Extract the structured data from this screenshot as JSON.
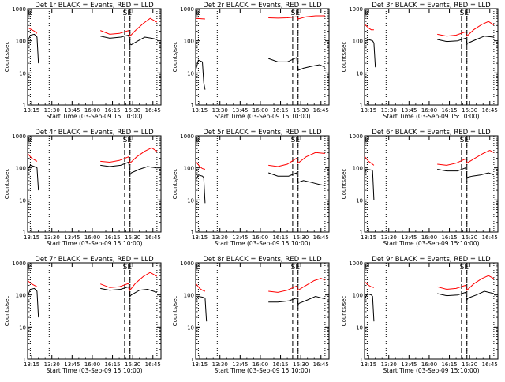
{
  "figure": {
    "xlabel": "Start Time (03-Sep-09 15:10:00)",
    "ylabel": "Counts/sec",
    "y_ticks": [
      1,
      10,
      100,
      1000
    ],
    "y_tick_labels": [
      "1",
      "10",
      "100",
      "1000"
    ],
    "x_ticks": [
      "13:15",
      "13:30",
      "13:45",
      "16:00",
      "16:15",
      "16:30",
      "16:45"
    ],
    "x_tick_minutes": [
      0,
      15,
      30,
      45,
      60,
      75,
      90
    ],
    "colors": {
      "events": "#000000",
      "lld": "#ff0000"
    }
  },
  "chart_data": [
    {
      "type": "line",
      "title": "Det 1r BLACK = Events, RED = LLD",
      "ylim": [
        1,
        1000
      ],
      "xlim": [
        -3,
        96
      ],
      "markers": {
        "E_label": "E",
        "SE_label": "SE"
      },
      "series": [
        {
          "name": "Events",
          "segments": [
            {
              "x": [
                -3,
                -1,
                2,
                4,
                5
              ],
              "y": [
                95,
                150,
                160,
                130,
                20
              ]
            },
            {
              "x": [
                51,
                58,
                66,
                72,
                73,
                74,
                79,
                84,
                89,
                93
              ],
              "y": [
                140,
                120,
                130,
                150,
                80,
                75,
                100,
                130,
                120,
                110
              ]
            }
          ]
        },
        {
          "name": "LLD",
          "segments": [
            {
              "x": [
                -3,
                0,
                2,
                4
              ],
              "y": [
                260,
                220,
                200,
                170
              ]
            },
            {
              "x": [
                51,
                58,
                65,
                72,
                73,
                77,
                83,
                88,
                93
              ],
              "y": [
                210,
                160,
                170,
                210,
                140,
                210,
                350,
                500,
                380
              ]
            }
          ]
        }
      ],
      "vlines_dotted": [
        -1,
        13,
        73,
        93
      ],
      "vlines_dashed": [
        69,
        73
      ]
    },
    {
      "type": "line",
      "title": "Det 2r BLACK = Events, RED = LLD",
      "ylim": [
        1,
        1000
      ],
      "xlim": [
        -3,
        96
      ],
      "markers": {
        "E_label": "E",
        "SE_label": "SE"
      },
      "series": [
        {
          "name": "Events",
          "segments": [
            {
              "x": [
                -3,
                -1,
                2,
                3,
                4
              ],
              "y": [
                12,
                25,
                22,
                5,
                3
              ]
            },
            {
              "x": [
                51,
                58,
                65,
                72,
                73,
                77,
                83,
                89,
                93
              ],
              "y": [
                28,
                22,
                22,
                30,
                12,
                14,
                16,
                18,
                15
              ]
            }
          ]
        },
        {
          "name": "LLD",
          "segments": [
            {
              "x": [
                -3,
                4
              ],
              "y": [
                500,
                480
              ]
            },
            {
              "x": [
                51,
                58,
                65,
                72,
                73,
                79,
                86,
                93
              ],
              "y": [
                520,
                510,
                520,
                560,
                480,
                560,
                600,
                600
              ]
            }
          ]
        }
      ],
      "vlines_dotted": [
        -1,
        13,
        73,
        93
      ],
      "vlines_dashed": [
        69,
        73
      ]
    },
    {
      "type": "line",
      "title": "Det 3r BLACK = Events, RED = LLD",
      "ylim": [
        1,
        1000
      ],
      "xlim": [
        -3,
        96
      ],
      "markers": {
        "E_label": "E",
        "SE_label": "SE"
      },
      "series": [
        {
          "name": "Events",
          "segments": [
            {
              "x": [
                -3,
                0,
                3,
                4,
                5
              ],
              "y": [
                120,
                110,
                100,
                85,
                15
              ]
            },
            {
              "x": [
                51,
                58,
                66,
                72,
                73,
                74,
                80,
                86,
                93
              ],
              "y": [
                110,
                95,
                100,
                120,
                80,
                85,
                110,
                140,
                130
              ]
            }
          ]
        },
        {
          "name": "LLD",
          "segments": [
            {
              "x": [
                -3,
                0,
                2,
                4
              ],
              "y": [
                330,
                250,
                220,
                220
              ]
            },
            {
              "x": [
                51,
                58,
                65,
                72,
                73,
                78,
                84,
                89,
                93
              ],
              "y": [
                160,
                140,
                150,
                190,
                140,
                220,
                320,
                400,
                310
              ]
            }
          ]
        }
      ],
      "vlines_dotted": [
        -1,
        13,
        73,
        93
      ],
      "vlines_dashed": [
        69,
        73
      ]
    },
    {
      "type": "line",
      "title": "Det 4r BLACK = Events, RED = LLD",
      "ylim": [
        1,
        1000
      ],
      "xlim": [
        -3,
        96
      ],
      "markers": {
        "E_label": "E",
        "SE_label": "SE"
      },
      "series": [
        {
          "name": "Events",
          "segments": [
            {
              "x": [
                -3,
                -1,
                2,
                4,
                5
              ],
              "y": [
                90,
                120,
                110,
                100,
                20
              ]
            },
            {
              "x": [
                51,
                58,
                66,
                72,
                73,
                74,
                80,
                86,
                93
              ],
              "y": [
                120,
                110,
                120,
                150,
                60,
                70,
                90,
                110,
                100
              ]
            }
          ]
        },
        {
          "name": "LLD",
          "segments": [
            {
              "x": [
                -3,
                0,
                2,
                4
              ],
              "y": [
                280,
                200,
                180,
                160
              ]
            },
            {
              "x": [
                51,
                58,
                65,
                72,
                73,
                78,
                84,
                89,
                93
              ],
              "y": [
                160,
                150,
                170,
                220,
                140,
                220,
                330,
                420,
                330
              ]
            }
          ]
        }
      ],
      "vlines_dotted": [
        -1,
        13,
        73,
        93
      ],
      "vlines_dashed": [
        69,
        73
      ]
    },
    {
      "type": "line",
      "title": "Det 5r BLACK = Events, RED = LLD",
      "ylim": [
        1,
        1000
      ],
      "xlim": [
        -3,
        96
      ],
      "markers": {
        "E_label": "E",
        "SE_label": "SE"
      },
      "series": [
        {
          "name": "Events",
          "segments": [
            {
              "x": [
                -3,
                -1,
                2,
                3,
                4
              ],
              "y": [
                40,
                60,
                55,
                50,
                8
              ]
            },
            {
              "x": [
                51,
                58,
                66,
                72,
                73,
                77,
                83,
                89,
                93
              ],
              "y": [
                70,
                55,
                55,
                70,
                35,
                40,
                35,
                30,
                28
              ]
            }
          ]
        },
        {
          "name": "LLD",
          "segments": [
            {
              "x": [
                -3,
                0,
                2,
                4
              ],
              "y": [
                160,
                110,
                95,
                90
              ]
            },
            {
              "x": [
                51,
                58,
                65,
                72,
                73,
                79,
                86,
                93
              ],
              "y": [
                120,
                110,
                130,
                200,
                140,
                220,
                300,
                280
              ]
            }
          ]
        }
      ],
      "vlines_dotted": [
        -1,
        13,
        73,
        93
      ],
      "vlines_dashed": [
        69,
        73
      ]
    },
    {
      "type": "line",
      "title": "Det 6r BLACK = Events, RED = LLD",
      "ylim": [
        1,
        1000
      ],
      "xlim": [
        -3,
        96
      ],
      "markers": {
        "E_label": "E",
        "SE_label": "SE"
      },
      "series": [
        {
          "name": "Events",
          "segments": [
            {
              "x": [
                -3,
                -1,
                2,
                3,
                4
              ],
              "y": [
                70,
                90,
                85,
                80,
                10
              ]
            },
            {
              "x": [
                51,
                58,
                66,
                72,
                73,
                77,
                83,
                89,
                93
              ],
              "y": [
                90,
                80,
                80,
                100,
                50,
                55,
                60,
                70,
                60
              ]
            }
          ]
        },
        {
          "name": "LLD",
          "segments": [
            {
              "x": [
                -3,
                0,
                2,
                4
              ],
              "y": [
                230,
                160,
                140,
                120
              ]
            },
            {
              "x": [
                51,
                58,
                65,
                72,
                73,
                79,
                85,
                90,
                93
              ],
              "y": [
                130,
                120,
                140,
                190,
                140,
                200,
                280,
                350,
                300
              ]
            }
          ]
        }
      ],
      "vlines_dotted": [
        -1,
        13,
        73,
        93
      ],
      "vlines_dashed": [
        69,
        73
      ]
    },
    {
      "type": "line",
      "title": "Det 7r BLACK = Events, RED = LLD",
      "ylim": [
        1,
        1000
      ],
      "xlim": [
        -3,
        96
      ],
      "markers": {
        "E_label": "E",
        "SE_label": "SE"
      },
      "series": [
        {
          "name": "Events",
          "segments": [
            {
              "x": [
                -3,
                -1,
                2,
                4,
                5
              ],
              "y": [
                90,
                150,
                160,
                130,
                20
              ]
            },
            {
              "x": [
                51,
                58,
                66,
                72,
                73,
                74,
                80,
                86,
                93
              ],
              "y": [
                160,
                140,
                150,
                180,
                90,
                100,
                140,
                150,
                120
              ]
            }
          ]
        },
        {
          "name": "LLD",
          "segments": [
            {
              "x": [
                -3,
                0,
                2,
                4
              ],
              "y": [
                280,
                220,
                200,
                180
              ]
            },
            {
              "x": [
                51,
                58,
                65,
                72,
                73,
                77,
                83,
                88,
                93
              ],
              "y": [
                220,
                170,
                180,
                230,
                140,
                230,
                380,
                500,
                380
              ]
            }
          ]
        }
      ],
      "vlines_dotted": [
        -1,
        13,
        73,
        93
      ],
      "vlines_dashed": [
        69,
        73
      ]
    },
    {
      "type": "line",
      "title": "Det 8r BLACK = Events, RED = LLD",
      "ylim": [
        1,
        1000
      ],
      "xlim": [
        -3,
        96
      ],
      "markers": {
        "E_label": "E",
        "SE_label": "SE"
      },
      "series": [
        {
          "name": "Events",
          "segments": [
            {
              "x": [
                -3,
                -1,
                2,
                4,
                5
              ],
              "y": [
                70,
                90,
                85,
                80,
                15
              ]
            },
            {
              "x": [
                51,
                58,
                66,
                72,
                73,
                74,
                80,
                86,
                93
              ],
              "y": [
                60,
                60,
                65,
                80,
                50,
                55,
                70,
                90,
                75
              ]
            }
          ]
        },
        {
          "name": "LLD",
          "segments": [
            {
              "x": [
                -3,
                0,
                2,
                4
              ],
              "y": [
                230,
                160,
                140,
                130
              ]
            },
            {
              "x": [
                51,
                58,
                65,
                72,
                73,
                79,
                85,
                90,
                93
              ],
              "y": [
                130,
                120,
                140,
                190,
                140,
                200,
                280,
                330,
                290
              ]
            }
          ]
        }
      ],
      "vlines_dotted": [
        -1,
        13,
        73,
        93
      ],
      "vlines_dashed": [
        69,
        73
      ]
    },
    {
      "type": "line",
      "title": "Det 9r BLACK = Events, RED = LLD",
      "ylim": [
        1,
        1000
      ],
      "xlim": [
        -3,
        96
      ],
      "markers": {
        "E_label": "E",
        "SE_label": "SE"
      },
      "series": [
        {
          "name": "Events",
          "segments": [
            {
              "x": [
                -3,
                -1,
                2,
                3,
                4
              ],
              "y": [
                70,
                110,
                100,
                90,
                15
              ]
            },
            {
              "x": [
                51,
                58,
                66,
                72,
                73,
                74,
                80,
                86,
                93
              ],
              "y": [
                110,
                95,
                100,
                120,
                70,
                80,
                100,
                130,
                110
              ]
            }
          ]
        },
        {
          "name": "LLD",
          "segments": [
            {
              "x": [
                -3,
                0,
                2,
                4
              ],
              "y": [
                260,
                200,
                180,
                170
              ]
            },
            {
              "x": [
                51,
                58,
                65,
                72,
                73,
                78,
                84,
                89,
                93
              ],
              "y": [
                180,
                150,
                160,
                200,
                140,
                220,
                320,
                400,
                320
              ]
            }
          ]
        }
      ],
      "vlines_dotted": [
        -1,
        13,
        73,
        93
      ],
      "vlines_dashed": [
        69,
        73
      ]
    }
  ]
}
